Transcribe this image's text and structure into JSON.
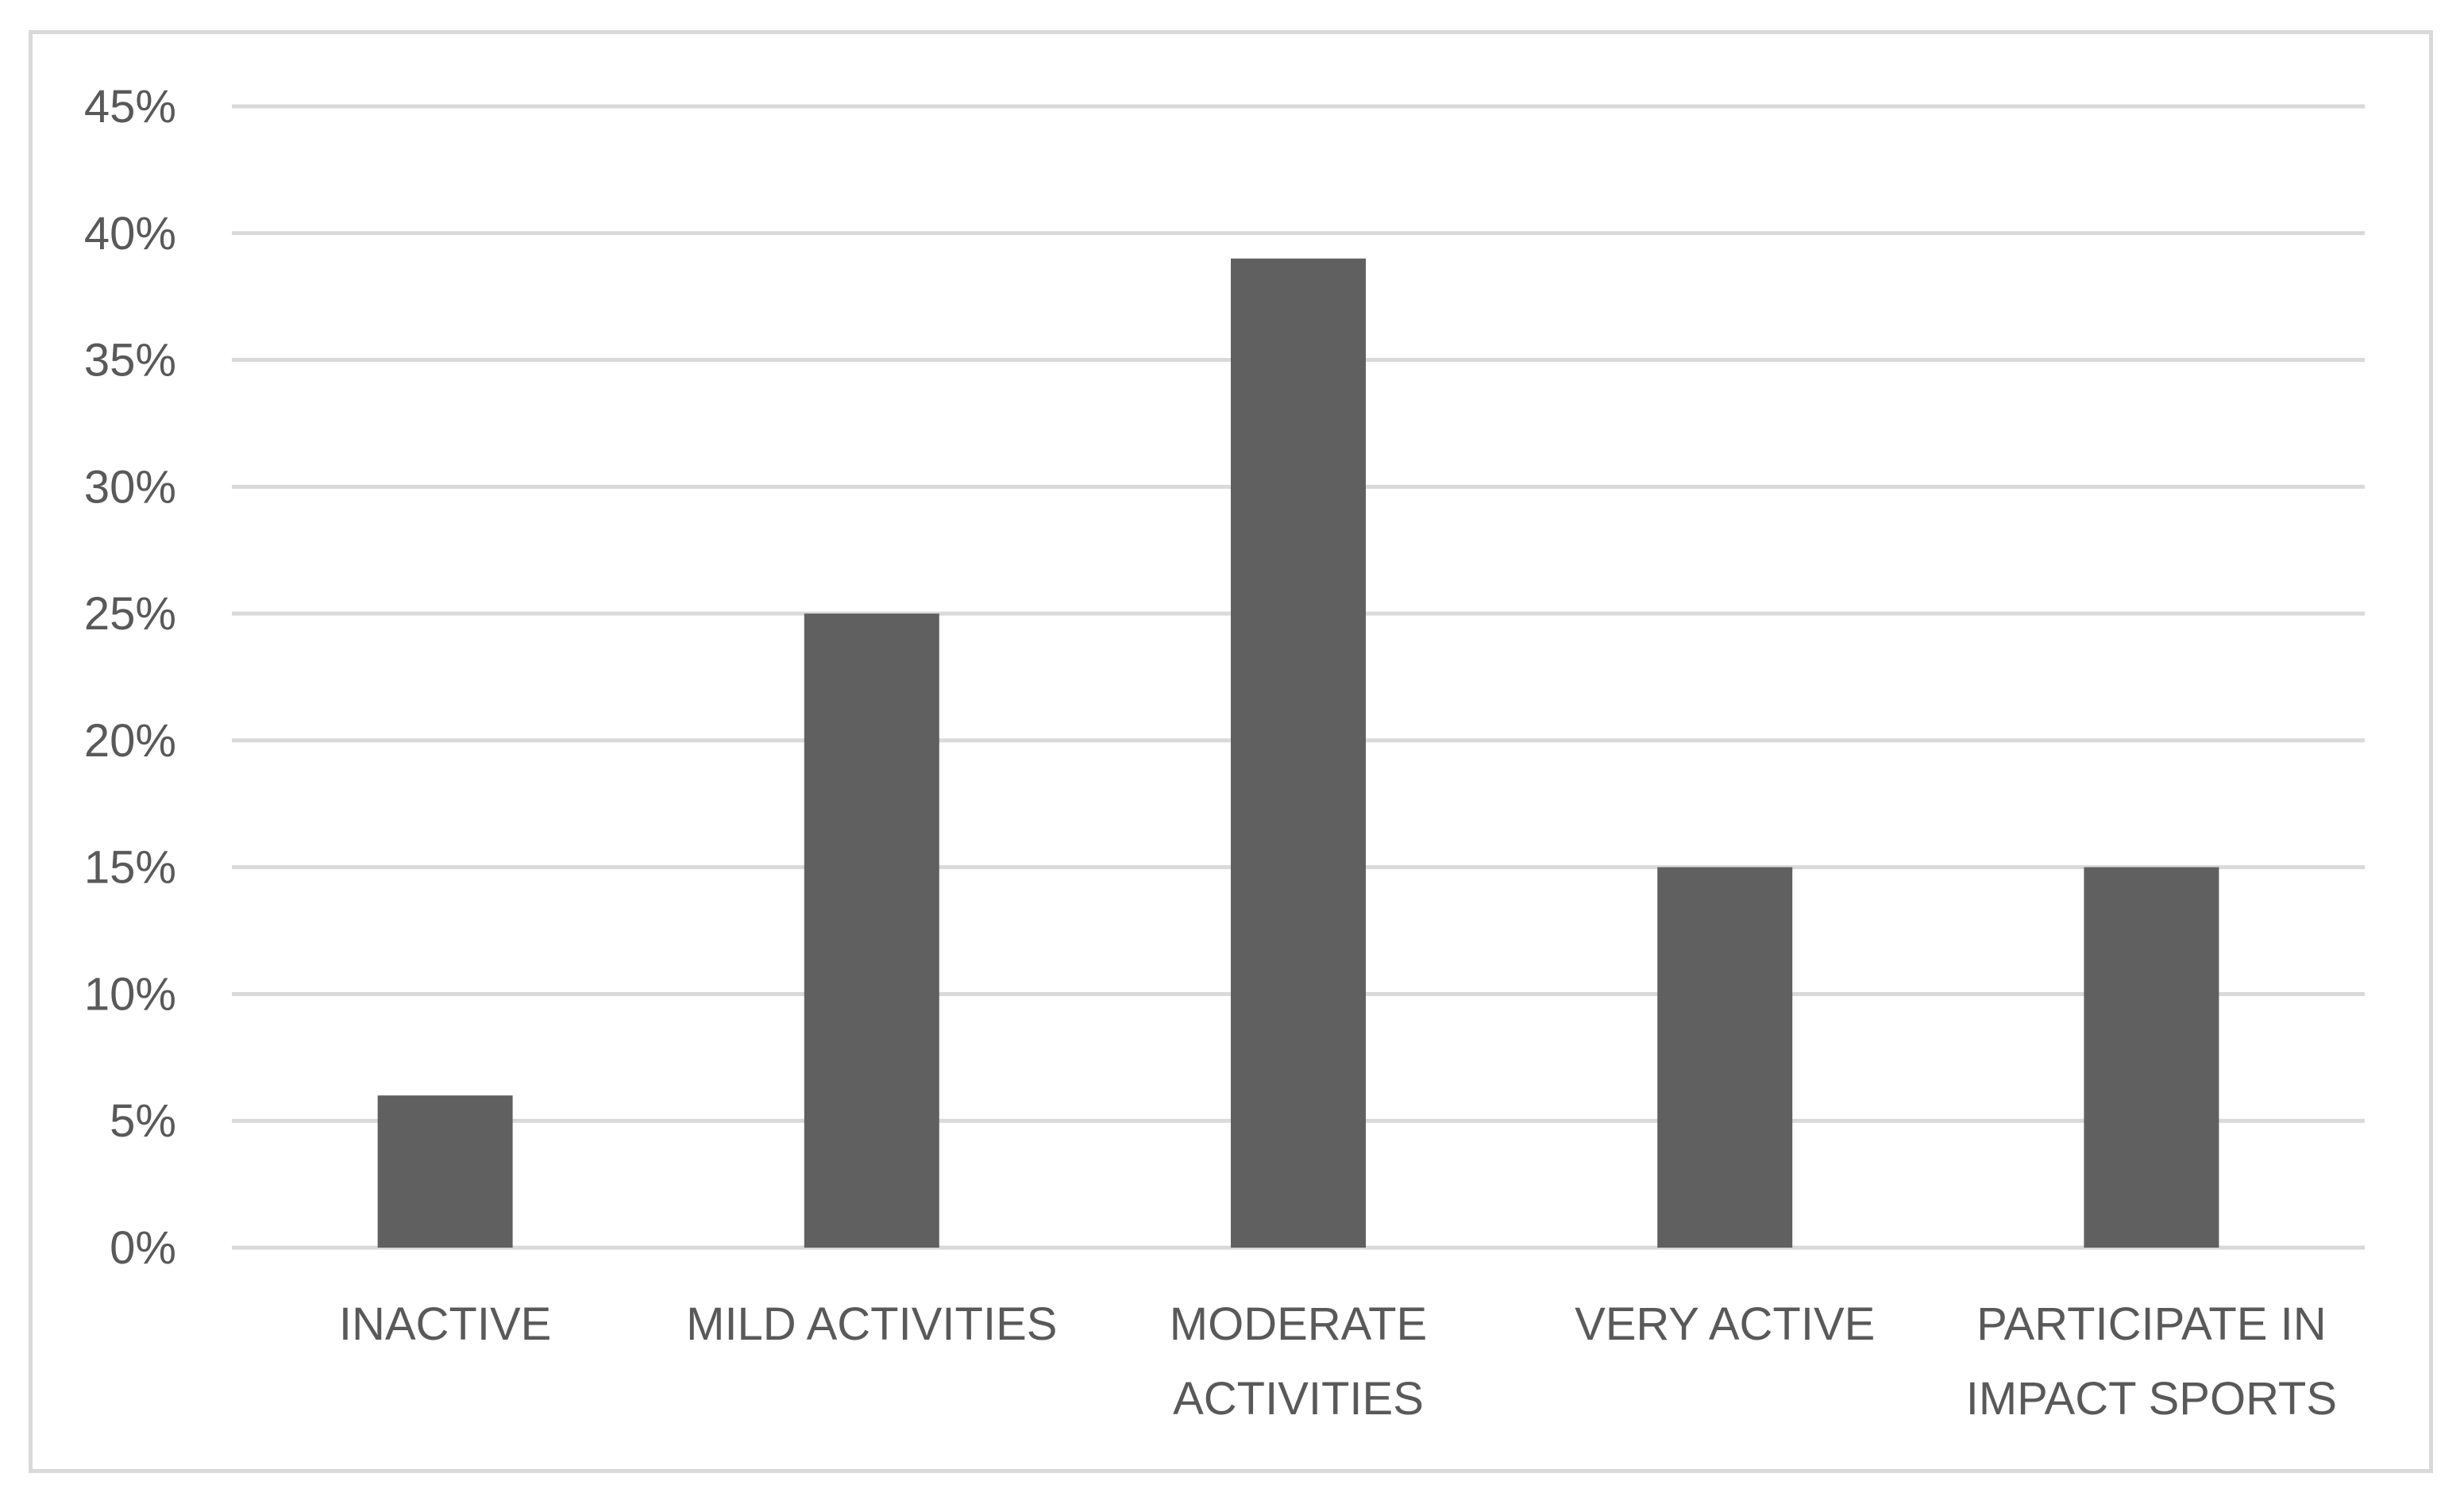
{
  "chart_data": {
    "type": "bar",
    "categories": [
      [
        "INACTIVE"
      ],
      [
        "MILD ACTIVITIES"
      ],
      [
        "MODERATE",
        "ACTIVITIES"
      ],
      [
        "VERY ACTIVE"
      ],
      [
        "PARTICIPATE IN",
        "IMPACT SPORTS"
      ]
    ],
    "values": [
      6,
      25,
      39,
      15,
      15
    ],
    "value_unit": "%",
    "y_ticks": [
      "0%",
      "5%",
      "10%",
      "15%",
      "20%",
      "25%",
      "30%",
      "35%",
      "40%",
      "45%"
    ],
    "ylim": [
      0,
      45
    ],
    "grid": true,
    "legend": "none",
    "colors": {
      "bar": "#606060",
      "grid": "#d9d9d9",
      "text": "#595959",
      "frame": "#d9d9d9"
    }
  }
}
